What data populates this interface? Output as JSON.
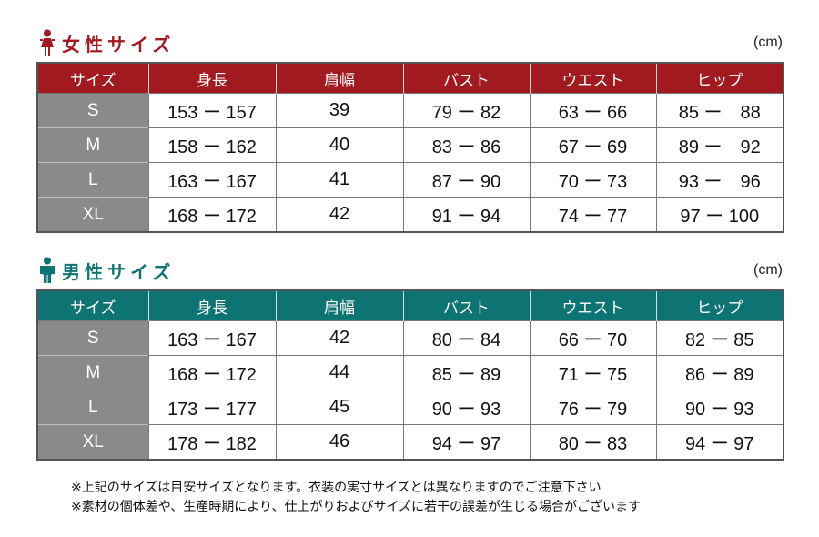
{
  "women": {
    "title": "女性サイズ",
    "unit": "(cm)",
    "icon": "female-person-icon",
    "color": "#a11a1f",
    "headers": [
      "サイズ",
      "身長",
      "肩幅",
      "バスト",
      "ウエスト",
      "ヒップ"
    ],
    "rows": [
      [
        "S",
        "153 ー 157",
        "39",
        "79 ー 82",
        "63 ー 66",
        "85 ー　88"
      ],
      [
        "M",
        "158 ー 162",
        "40",
        "83 ー 86",
        "67 ー 69",
        "89 ー　92"
      ],
      [
        "L",
        "163 ー 167",
        "41",
        "87 ー 90",
        "70 ー 73",
        "93 ー　96"
      ],
      [
        "XL",
        "168 ー 172",
        "42",
        "91 ー 94",
        "74 ー 77",
        "97 ー 100"
      ]
    ]
  },
  "men": {
    "title": "男性サイズ",
    "unit": "(cm)",
    "icon": "male-person-icon",
    "color": "#0e7373",
    "headers": [
      "サイズ",
      "身長",
      "肩幅",
      "バスト",
      "ウエスト",
      "ヒップ"
    ],
    "rows": [
      [
        "S",
        "163 ー 167",
        "42",
        "80 ー 84",
        "66 ー 70",
        "82 ー 85"
      ],
      [
        "M",
        "168 ー 172",
        "44",
        "85 ー 89",
        "71 ー 75",
        "86 ー 89"
      ],
      [
        "L",
        "173 ー 177",
        "45",
        "90 ー 93",
        "76 ー 79",
        "90 ー 93"
      ],
      [
        "XL",
        "178 ー 182",
        "46",
        "94 ー 97",
        "80 ー 83",
        "94 ー 97"
      ]
    ]
  },
  "notes": [
    "※上記のサイズは目安サイズとなります。衣装の実寸サイズとは異なりますのでご注意下さい",
    "※素材の個体差や、生産時期により、仕上がりおよびサイズに若干の誤差が生じる場合がございます"
  ]
}
